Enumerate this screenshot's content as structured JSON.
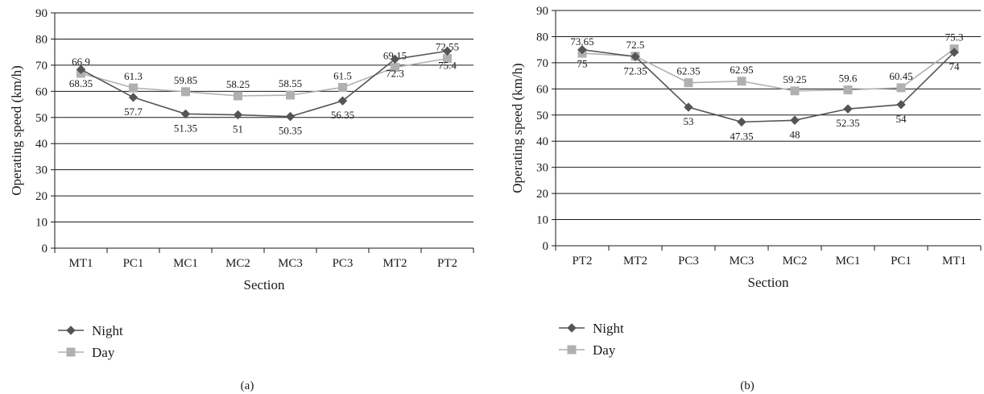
{
  "chart_data": [
    {
      "type": "line",
      "caption": "(a)",
      "categories": [
        "MT1",
        "PC1",
        "MC1",
        "MC2",
        "MC3",
        "PC3",
        "MT2",
        "PT2"
      ],
      "xlabel": "Section",
      "ylabel": "Operating speed (km/h)",
      "ylim": [
        0,
        90
      ],
      "yticks": [
        "0",
        "10",
        "20",
        "30",
        "40",
        "50",
        "60",
        "70",
        "80",
        "90"
      ],
      "grid": true,
      "legend": "bottom-left",
      "series": [
        {
          "name": "Night",
          "values": [
            68.35,
            57.7,
            51.35,
            51,
            50.35,
            56.35,
            72.3,
            75.4
          ],
          "labels": [
            "68.35",
            "57.7",
            "51.35",
            "51",
            "50.35",
            "56.35",
            "72.3",
            "75.4"
          ],
          "label_pos": [
            "below",
            "below",
            "below",
            "below",
            "below",
            "below",
            "below",
            "below"
          ],
          "color": "#555555",
          "marker": "diamond"
        },
        {
          "name": "Day",
          "values": [
            66.9,
            61.3,
            59.85,
            58.25,
            58.55,
            61.5,
            69.15,
            72.55
          ],
          "labels": [
            "66.9",
            "61.3",
            "59.85",
            "58.25",
            "58.55",
            "61.5",
            "69.15",
            "72.55"
          ],
          "label_pos": [
            "above",
            "above",
            "above",
            "above",
            "above",
            "above",
            "above",
            "above"
          ],
          "color": "#b0b0b0",
          "marker": "square"
        }
      ]
    },
    {
      "type": "line",
      "caption": "(b)",
      "categories": [
        "PT2",
        "MT2",
        "PC3",
        "MC3",
        "MC2",
        "MC1",
        "PC1",
        "MT1"
      ],
      "xlabel": "Section",
      "ylabel": "Operating speed (km/h)",
      "ylim": [
        0,
        90
      ],
      "yticks": [
        "0",
        "10",
        "20",
        "30",
        "40",
        "50",
        "60",
        "70",
        "80",
        "90"
      ],
      "grid": true,
      "legend": "bottom-left",
      "series": [
        {
          "name": "Night",
          "values": [
            75,
            72.35,
            53,
            47.35,
            48,
            52.35,
            54,
            74
          ],
          "labels": [
            "75",
            "72.35",
            "53",
            "47.35",
            "48",
            "52.35",
            "54",
            "74"
          ],
          "label_pos": [
            "below",
            "below",
            "below",
            "below",
            "below",
            "below",
            "below",
            "below"
          ],
          "color": "#555555",
          "marker": "diamond"
        },
        {
          "name": "Day",
          "values": [
            73.65,
            72.5,
            62.35,
            62.95,
            59.25,
            59.6,
            60.45,
            75.3
          ],
          "labels": [
            "73.65",
            "72.5",
            "62.35",
            "62.95",
            "59.25",
            "59.6",
            "60.45",
            "75.3"
          ],
          "label_pos": [
            "above",
            "above",
            "above",
            "above",
            "above",
            "above",
            "above",
            "above"
          ],
          "color": "#b0b0b0",
          "marker": "square"
        }
      ]
    }
  ]
}
